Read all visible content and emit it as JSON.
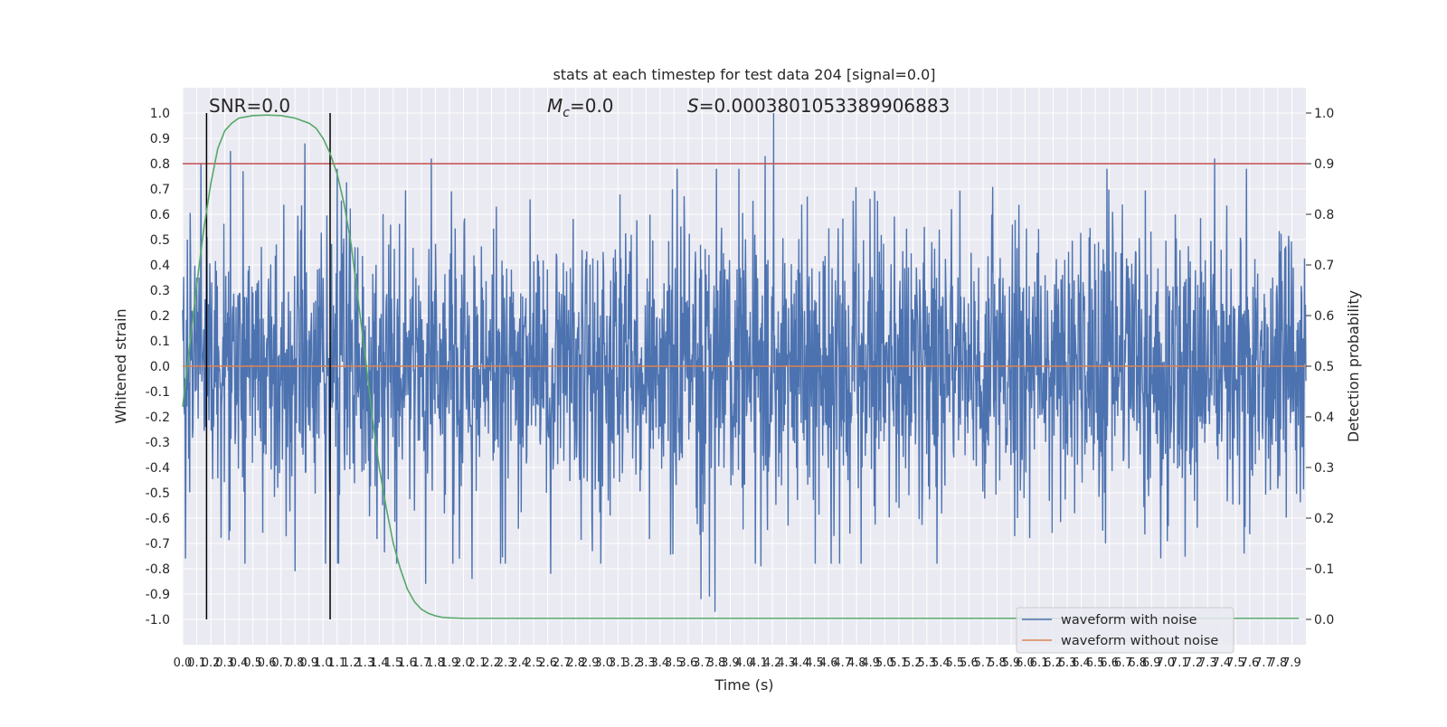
{
  "chart_data": {
    "type": "line",
    "title": "stats at each timestep for test data 204 [signal=0.0]",
    "xlabel": "Time (s)",
    "ylabel": "Whitened strain",
    "y2label": "Detection probability",
    "xlim": [
      0.0,
      8.0
    ],
    "ylim": [
      -1.1,
      1.1
    ],
    "y2lim": [
      -0.05,
      1.05
    ],
    "x_ticks": [
      0.0,
      0.1,
      0.2,
      0.3,
      0.4,
      0.5,
      0.6,
      0.7,
      0.8,
      0.9,
      1.0,
      1.1,
      1.2,
      1.3,
      1.4,
      1.5,
      1.6,
      1.7,
      1.8,
      1.9,
      2.0,
      2.1,
      2.2,
      2.3,
      2.4,
      2.5,
      2.6,
      2.7,
      2.8,
      2.9,
      3.0,
      3.1,
      3.2,
      3.3,
      3.4,
      3.5,
      3.6,
      3.7,
      3.8,
      3.9,
      4.0,
      4.1,
      4.2,
      4.3,
      4.4,
      4.5,
      4.6,
      4.7,
      4.8,
      4.9,
      5.0,
      5.1,
      5.2,
      5.3,
      5.4,
      5.5,
      5.6,
      5.7,
      5.8,
      5.9,
      6.0,
      6.1,
      6.2,
      6.3,
      6.4,
      6.5,
      6.6,
      6.7,
      6.8,
      6.9,
      7.0,
      7.1,
      7.2,
      7.3,
      7.4,
      7.5,
      7.6,
      7.7,
      7.8,
      7.9
    ],
    "y_ticks": [
      -1.0,
      -0.9,
      -0.8,
      -0.7,
      -0.6,
      -0.5,
      -0.4,
      -0.3,
      -0.2,
      -0.1,
      0.0,
      0.1,
      0.2,
      0.3,
      0.4,
      0.5,
      0.6,
      0.7,
      0.8,
      0.9,
      1.0
    ],
    "y2_ticks": [
      0.0,
      0.1,
      0.2,
      0.3,
      0.4,
      0.5,
      0.6,
      0.7,
      0.8,
      0.9,
      1.0
    ],
    "grid": true,
    "legend_position": "lower-right",
    "annotations": {
      "snr": "SNR=0.0",
      "mc_symbol": "M",
      "mc_sub": "c",
      "mc_value": "=0.0",
      "s_symbol": "S",
      "s_value": "=0.0003801053389906883"
    },
    "threshold_detection_probability": 0.9,
    "vertical_markers_x": [
      0.17,
      1.05
    ],
    "series": [
      {
        "name": "waveform with noise",
        "color": "#4c72b0",
        "axis": "left",
        "noise_amplitude_approx": 0.3,
        "peak_x": [
          0.02,
          0.13,
          0.34,
          0.43,
          0.87,
          1.77,
          4.15,
          4.21,
          7.35
        ],
        "peak_y": [
          0.77,
          0.8,
          0.85,
          0.77,
          0.88,
          0.82,
          0.83,
          1.0,
          0.82
        ],
        "trough_x": [
          0.02,
          0.8,
          1.73,
          2.06,
          2.62,
          3.69,
          3.75,
          3.79,
          4.12
        ],
        "trough_y": [
          -0.76,
          -0.81,
          -0.86,
          -0.84,
          -0.82,
          -0.92,
          -0.91,
          -0.97,
          -0.79
        ]
      },
      {
        "name": "waveform without noise",
        "color": "#dd8452",
        "axis": "left",
        "x": [
          0.0,
          8.0
        ],
        "y": [
          0.0,
          0.0
        ]
      },
      {
        "name": "",
        "color": "#55a868",
        "axis": "right",
        "x": [
          0.0,
          0.05,
          0.1,
          0.15,
          0.2,
          0.25,
          0.3,
          0.35,
          0.4,
          0.5,
          0.6,
          0.7,
          0.8,
          0.9,
          0.95,
          1.0,
          1.05,
          1.1,
          1.15,
          1.2,
          1.25,
          1.3,
          1.35,
          1.4,
          1.45,
          1.5,
          1.55,
          1.6,
          1.65,
          1.7,
          1.75,
          1.8,
          1.85,
          1.9,
          2.0,
          2.2,
          2.5,
          3.0,
          4.0,
          5.0,
          6.0,
          7.0,
          7.95
        ],
        "y": [
          0.42,
          0.54,
          0.66,
          0.77,
          0.86,
          0.93,
          0.965,
          0.98,
          0.99,
          0.995,
          0.996,
          0.995,
          0.99,
          0.98,
          0.97,
          0.95,
          0.92,
          0.88,
          0.82,
          0.74,
          0.63,
          0.52,
          0.4,
          0.3,
          0.22,
          0.15,
          0.1,
          0.06,
          0.035,
          0.02,
          0.012,
          0.007,
          0.004,
          0.003,
          0.002,
          0.002,
          0.002,
          0.002,
          0.002,
          0.002,
          0.002,
          0.002,
          0.002
        ]
      }
    ]
  }
}
